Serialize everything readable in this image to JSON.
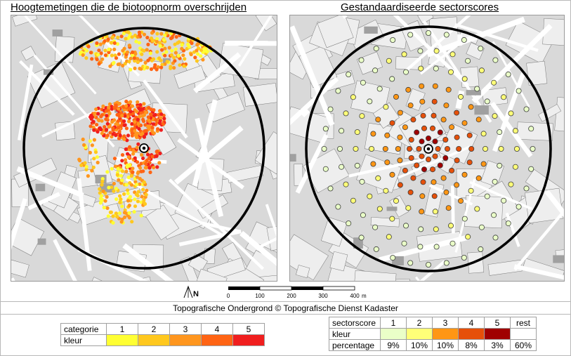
{
  "titles": {
    "left": "Hoogtemetingen die de biotoopnorm overschrijden",
    "right": "Gestandaardiseerde sectorscores"
  },
  "scale": {
    "north_label": "N",
    "ticks": [
      "0",
      "100",
      "200",
      "300",
      "400"
    ],
    "unit": "m"
  },
  "credit": "Topografische Ondergrond © Topografische Dienst Kadaster",
  "legend_left": {
    "header": "categorie",
    "row_label": "kleur",
    "categories": [
      "1",
      "2",
      "3",
      "4",
      "5"
    ],
    "colors": [
      "#ffff33",
      "#ffc81e",
      "#ff961e",
      "#ff6414",
      "#f01e1e"
    ]
  },
  "legend_right": {
    "header": "sectorscore",
    "row_label": "kleur",
    "pct_label": "percentage",
    "scores": [
      "1",
      "2",
      "3",
      "4",
      "5",
      "rest"
    ],
    "colors": [
      "#eaffc8",
      "#ffff78",
      "#ff9614",
      "#e6500a",
      "#a00000",
      "#ffffff"
    ],
    "percentages": [
      "9%",
      "10%",
      "10%",
      "8%",
      "3%",
      "60%"
    ]
  },
  "colors": {
    "road": "#ffffff",
    "block_outline": "#7a7a7a",
    "building": "#a0a0a0",
    "circle": "#000000"
  }
}
